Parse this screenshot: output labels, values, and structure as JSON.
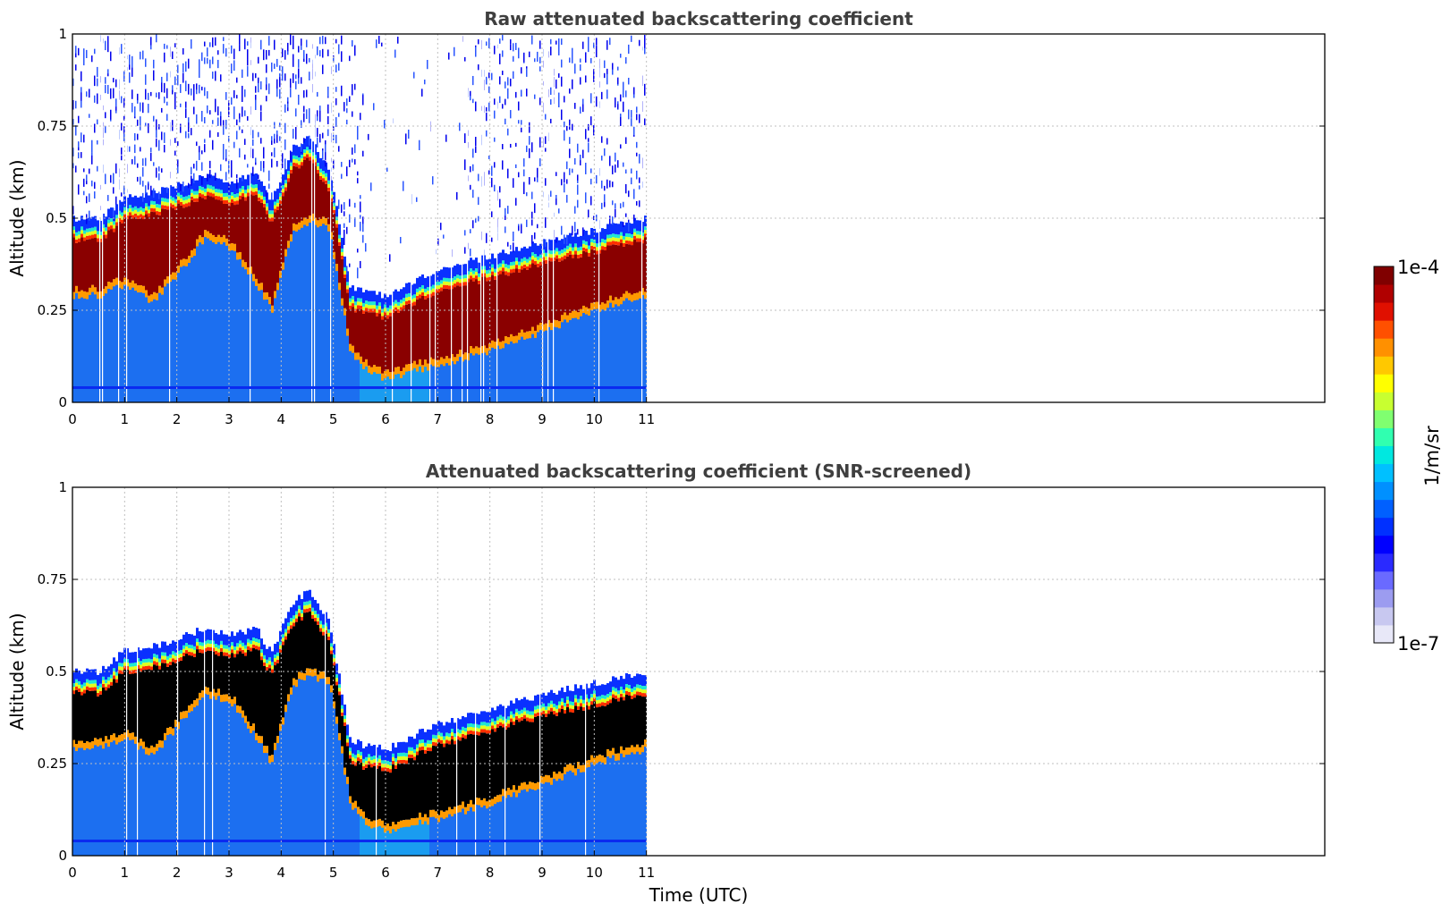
{
  "chart_data": [
    {
      "type": "heatmap",
      "title": "Raw attenuated backscattering coefficient",
      "xlabel": "",
      "ylabel": "Altitude (km)",
      "xlim": [
        0,
        24
      ],
      "ylim": [
        0,
        1
      ],
      "xticks": [
        0,
        1,
        2,
        3,
        4,
        5,
        6,
        7,
        8,
        9,
        10,
        11
      ],
      "yticks": [
        0,
        0.25,
        0.5,
        0.75,
        1
      ],
      "ytick_labels": [
        "0",
        "0.25",
        "0.5",
        "0.75",
        "1"
      ],
      "grid": true,
      "data_end_hour": 11,
      "screened": false,
      "layer_profile": {
        "hours": [
          0,
          0.5,
          1.0,
          1.5,
          2.0,
          2.5,
          3.0,
          3.5,
          3.8,
          4.2,
          4.5,
          4.9,
          5.3,
          5.6,
          6.0,
          6.4,
          7.0,
          8.0,
          9.0,
          10.0,
          11.0
        ],
        "bottom_km": [
          0.3,
          0.3,
          0.33,
          0.28,
          0.36,
          0.45,
          0.43,
          0.33,
          0.26,
          0.47,
          0.5,
          0.48,
          0.15,
          0.1,
          0.07,
          0.09,
          0.11,
          0.15,
          0.2,
          0.26,
          0.3
        ],
        "top_km": [
          0.44,
          0.44,
          0.5,
          0.51,
          0.53,
          0.56,
          0.54,
          0.56,
          0.49,
          0.63,
          0.66,
          0.58,
          0.26,
          0.24,
          0.23,
          0.26,
          0.3,
          0.34,
          0.38,
          0.41,
          0.44
        ]
      }
    },
    {
      "type": "heatmap",
      "title": "Attenuated backscattering coefficient (SNR-screened)",
      "xlabel": "Time (UTC)",
      "ylabel": "Altitude (km)",
      "xlim": [
        0,
        24
      ],
      "ylim": [
        0,
        1
      ],
      "xticks": [
        0,
        1,
        2,
        3,
        4,
        5,
        6,
        7,
        8,
        9,
        10,
        11
      ],
      "yticks": [
        0,
        0.25,
        0.5,
        0.75,
        1
      ],
      "ytick_labels": [
        "0",
        "0.25",
        "0.5",
        "0.75",
        "1"
      ],
      "grid": true,
      "data_end_hour": 11,
      "screened": true,
      "layer_profile": {
        "hours": [
          0,
          0.5,
          1.0,
          1.5,
          2.0,
          2.5,
          3.0,
          3.5,
          3.8,
          4.2,
          4.5,
          4.9,
          5.3,
          5.6,
          6.0,
          6.4,
          7.0,
          8.0,
          9.0,
          10.0,
          11.0
        ],
        "bottom_km": [
          0.3,
          0.3,
          0.33,
          0.28,
          0.36,
          0.45,
          0.43,
          0.33,
          0.26,
          0.47,
          0.5,
          0.48,
          0.15,
          0.1,
          0.07,
          0.09,
          0.11,
          0.15,
          0.2,
          0.26,
          0.3
        ],
        "top_km": [
          0.44,
          0.44,
          0.5,
          0.51,
          0.53,
          0.56,
          0.54,
          0.56,
          0.49,
          0.63,
          0.66,
          0.58,
          0.26,
          0.24,
          0.23,
          0.26,
          0.3,
          0.34,
          0.38,
          0.41,
          0.44
        ]
      }
    }
  ],
  "colorbar": {
    "label": "1/m/sr",
    "max_label": "1e-4",
    "min_label": "1e-7",
    "colors": [
      "#e8e8f8",
      "#c8c8f0",
      "#9c9cf0",
      "#6a6aff",
      "#2a2aff",
      "#0000ff",
      "#0030ff",
      "#0060ff",
      "#0090ff",
      "#00c0ff",
      "#00e8e0",
      "#30ffb0",
      "#80ff70",
      "#c8ff30",
      "#ffff00",
      "#ffc800",
      "#ff9000",
      "#ff5000",
      "#e01000",
      "#b00000",
      "#800000"
    ]
  }
}
